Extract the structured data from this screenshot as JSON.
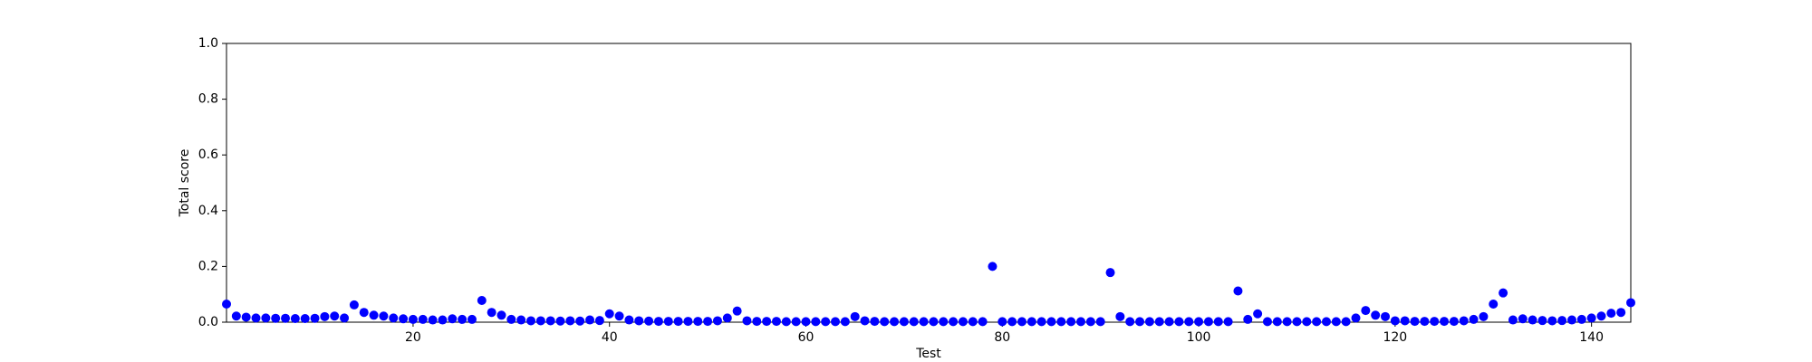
{
  "chart_data": {
    "type": "scatter",
    "xlabel": "Test",
    "ylabel": "Total score",
    "color": "#0000ff",
    "x": [
      1,
      2,
      3,
      4,
      5,
      6,
      7,
      8,
      9,
      10,
      11,
      12,
      13,
      14,
      15,
      16,
      17,
      18,
      19,
      20,
      21,
      22,
      23,
      24,
      25,
      26,
      27,
      28,
      29,
      30,
      31,
      32,
      33,
      34,
      35,
      36,
      37,
      38,
      39,
      40,
      41,
      42,
      43,
      44,
      45,
      46,
      47,
      48,
      49,
      50,
      51,
      52,
      53,
      54,
      55,
      56,
      57,
      58,
      59,
      60,
      61,
      62,
      63,
      64,
      65,
      66,
      67,
      68,
      69,
      70,
      71,
      72,
      73,
      74,
      75,
      76,
      77,
      78,
      79,
      80,
      81,
      82,
      83,
      84,
      85,
      86,
      87,
      88,
      89,
      90,
      91,
      92,
      93,
      94,
      95,
      96,
      97,
      98,
      99,
      100,
      101,
      102,
      103,
      104,
      105,
      106,
      107,
      108,
      109,
      110,
      111,
      112,
      113,
      114,
      115,
      116,
      117,
      118,
      119,
      120,
      121,
      122,
      123,
      124,
      125,
      126,
      127,
      128,
      129,
      130,
      131,
      132,
      133,
      134,
      135,
      136,
      137,
      138,
      139,
      140,
      141,
      142,
      143,
      144
    ],
    "values": [
      0.065,
      0.022,
      0.018,
      0.015,
      0.015,
      0.014,
      0.014,
      0.013,
      0.013,
      0.014,
      0.02,
      0.022,
      0.015,
      0.062,
      0.035,
      0.025,
      0.022,
      0.015,
      0.012,
      0.01,
      0.01,
      0.008,
      0.008,
      0.012,
      0.01,
      0.01,
      0.078,
      0.035,
      0.025,
      0.01,
      0.008,
      0.005,
      0.005,
      0.005,
      0.004,
      0.005,
      0.004,
      0.008,
      0.006,
      0.03,
      0.022,
      0.008,
      0.005,
      0.004,
      0.003,
      0.003,
      0.003,
      0.003,
      0.003,
      0.003,
      0.005,
      0.015,
      0.04,
      0.005,
      0.003,
      0.003,
      0.003,
      0.002,
      0.002,
      0.002,
      0.002,
      0.002,
      0.002,
      0.002,
      0.02,
      0.005,
      0.003,
      0.002,
      0.002,
      0.002,
      0.002,
      0.002,
      0.002,
      0.002,
      0.002,
      0.002,
      0.002,
      0.002,
      0.2,
      0.002,
      0.002,
      0.002,
      0.002,
      0.002,
      0.002,
      0.002,
      0.002,
      0.002,
      0.002,
      0.002,
      0.178,
      0.02,
      0.002,
      0.002,
      0.002,
      0.002,
      0.002,
      0.002,
      0.002,
      0.002,
      0.002,
      0.002,
      0.002,
      0.112,
      0.01,
      0.03,
      0.002,
      0.002,
      0.002,
      0.002,
      0.002,
      0.002,
      0.002,
      0.002,
      0.002,
      0.015,
      0.042,
      0.025,
      0.02,
      0.005,
      0.005,
      0.003,
      0.003,
      0.003,
      0.003,
      0.003,
      0.005,
      0.01,
      0.02,
      0.065,
      0.105,
      0.008,
      0.012,
      0.008,
      0.006,
      0.005,
      0.006,
      0.008,
      0.01,
      0.015,
      0.022,
      0.032,
      0.035,
      0.07
    ],
    "xlim": [
      1,
      144
    ],
    "xticks": [
      20,
      40,
      60,
      80,
      100,
      120,
      140
    ],
    "ylim": [
      0,
      1
    ],
    "yticks": [
      {
        "value": 0,
        "label": "0.0"
      },
      0.2,
      0.4,
      0.6,
      0.8,
      {
        "value": 1,
        "label": "1.0"
      }
    ]
  }
}
